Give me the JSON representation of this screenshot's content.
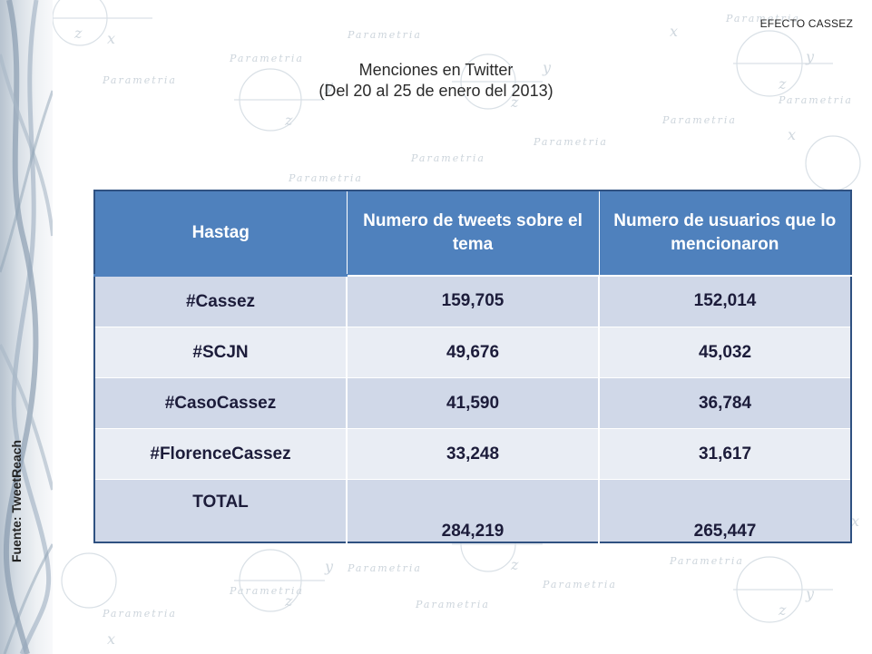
{
  "corner_label": "EFECTO CASSEZ",
  "title": {
    "line1": "Menciones en Twitter",
    "line2": "(Del 20 al 25 de enero del 2013)"
  },
  "source_label": "Fuente: TweetReach",
  "watermark_word": "Parametria",
  "table": {
    "headers": [
      "Hastag",
      "Numero de tweets  sobre el tema",
      "Numero de usuarios que lo mencionaron"
    ],
    "rows": [
      {
        "hashtag": "#Cassez",
        "tweets": "159,705",
        "users": "152,014"
      },
      {
        "hashtag": "#SCJN",
        "tweets": "49,676",
        "users": "45,032"
      },
      {
        "hashtag": "#CasoCassez",
        "tweets": "41,590",
        "users": "36,784"
      },
      {
        "hashtag": "#FlorenceCassez",
        "tweets": "33,248",
        "users": "31,617"
      }
    ],
    "total": {
      "label": "TOTAL",
      "tweets": "284,219",
      "users": "265,447"
    }
  },
  "colors": {
    "header_bg": "#4f81bd",
    "row_dark": "#d0d8e8",
    "row_light": "#e9edf4",
    "border": "#2f5181"
  }
}
